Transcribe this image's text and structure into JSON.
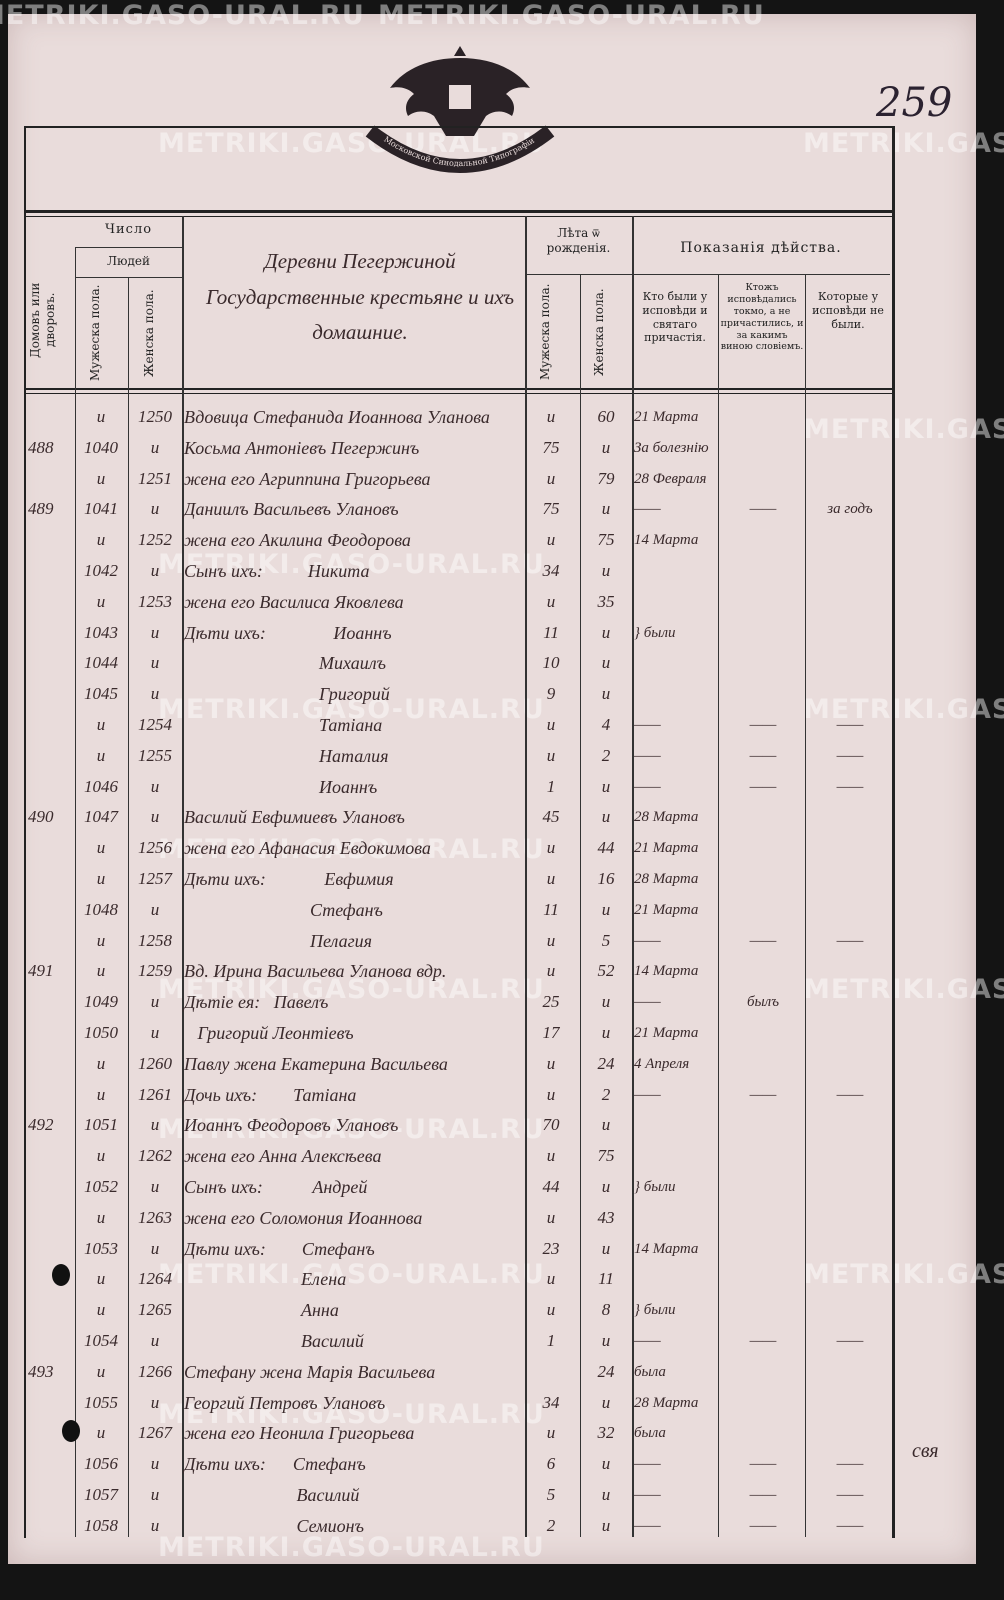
{
  "page_number": "259",
  "watermark": "METRIKI.GASO-URAL.RU",
  "emblem_text": "Московской Синодальной Типографiи",
  "header": {
    "count_group": "Число",
    "houses": "Домовъ или дворовъ.",
    "people": "Людей",
    "male": "Мужеска пола.",
    "female": "Женска пола.",
    "title_handwritten": "Деревни Пегержиной Государственные крестьяне и ихъ домашние.",
    "age_group": "Лѣта ѿ рожденiя.",
    "age_male": "Мужеска пола.",
    "age_female": "Женска пола.",
    "actions_group": "Показанiя дѣйства.",
    "col_confessed": "Кто были у исповѣди и святаго причастiя.",
    "col_confessed_only": "Ктожъ исповѣдались токмо, а не причастились, и за какимъ виною словiемъ.",
    "col_absent": "Которые у исповѣди не были."
  },
  "rows": [
    {
      "h": "",
      "m": "и",
      "f": "1250",
      "name": "Вдовица Стефанида Иоаннова Уланова",
      "am": "и",
      "af": "60",
      "c1": "21 Марта",
      "c2": "",
      "c3": ""
    },
    {
      "h": "488",
      "m": "1040",
      "f": "и",
      "name": "Косьма Антонiевъ Пегержинъ",
      "am": "75",
      "af": "и",
      "c1": "За болезнiю",
      "c2": "",
      "c3": ""
    },
    {
      "h": "",
      "m": "и",
      "f": "1251",
      "name": "жена его Агриппина Григорьева",
      "am": "и",
      "af": "79",
      "c1": "28 Февраля",
      "c2": "",
      "c3": ""
    },
    {
      "h": "489",
      "m": "1041",
      "f": "и",
      "name": "Даниилъ Васильевъ Улановъ",
      "am": "75",
      "af": "и",
      "c1": "——",
      "c2": "——",
      "c3": "за годъ"
    },
    {
      "h": "",
      "m": "и",
      "f": "1252",
      "name": "жена его Акилина Феодорова",
      "am": "и",
      "af": "75",
      "c1": "14 Марта",
      "c2": "",
      "c3": ""
    },
    {
      "h": "",
      "m": "1042",
      "f": "и",
      "name": "Сынъ ихъ:          Никита",
      "am": "34",
      "af": "и",
      "c1": "",
      "c2": "",
      "c3": ""
    },
    {
      "h": "",
      "m": "и",
      "f": "1253",
      "name": "жена его Василиса Яковлева",
      "am": "и",
      "af": "35",
      "c1": "",
      "c2": "",
      "c3": ""
    },
    {
      "h": "",
      "m": "1043",
      "f": "и",
      "name": "Дѣти ихъ:               Иоаннъ",
      "am": "11",
      "af": "и",
      "c1": "} были",
      "c2": "",
      "c3": ""
    },
    {
      "h": "",
      "m": "1044",
      "f": "и",
      "name": "                              Михаилъ",
      "am": "10",
      "af": "и",
      "c1": "",
      "c2": "",
      "c3": ""
    },
    {
      "h": "",
      "m": "1045",
      "f": "и",
      "name": "                              Григорий",
      "am": "9",
      "af": "и",
      "c1": "",
      "c2": "",
      "c3": ""
    },
    {
      "h": "",
      "m": "и",
      "f": "1254",
      "name": "                              Татiана",
      "am": "и",
      "af": "4",
      "c1": "——",
      "c2": "——",
      "c3": "——"
    },
    {
      "h": "",
      "m": "и",
      "f": "1255",
      "name": "                              Наталия",
      "am": "и",
      "af": "2",
      "c1": "——",
      "c2": "——",
      "c3": "——"
    },
    {
      "h": "",
      "m": "1046",
      "f": "и",
      "name": "                              Иоаннъ",
      "am": "1",
      "af": "и",
      "c1": "——",
      "c2": "——",
      "c3": "——"
    },
    {
      "h": "490",
      "m": "1047",
      "f": "и",
      "name": "Василий Евфимиевъ Улановъ",
      "am": "45",
      "af": "и",
      "c1": "28 Марта",
      "c2": "",
      "c3": ""
    },
    {
      "h": "",
      "m": "и",
      "f": "1256",
      "name": "жена его Афанасия Евдокимова",
      "am": "и",
      "af": "44",
      "c1": "21 Марта",
      "c2": "",
      "c3": ""
    },
    {
      "h": "",
      "m": "и",
      "f": "1257",
      "name": "Дѣти ихъ:             Евфимия",
      "am": "и",
      "af": "16",
      "c1": "28 Марта",
      "c2": "",
      "c3": ""
    },
    {
      "h": "",
      "m": "1048",
      "f": "и",
      "name": "                            Стефанъ",
      "am": "11",
      "af": "и",
      "c1": "21 Марта",
      "c2": "",
      "c3": ""
    },
    {
      "h": "",
      "m": "и",
      "f": "1258",
      "name": "                            Пелагия",
      "am": "и",
      "af": "5",
      "c1": "——",
      "c2": "——",
      "c3": "——"
    },
    {
      "h": "491",
      "m": "и",
      "f": "1259",
      "name": "Вд. Ирина Васильева Уланова вдр.",
      "am": "и",
      "af": "52",
      "c1": "14 Марта",
      "c2": "",
      "c3": ""
    },
    {
      "h": "",
      "m": "1049",
      "f": "и",
      "name": "Дѣтiе ея:   Павелъ",
      "am": "25",
      "af": "и",
      "c1": "——",
      "c2": "былъ",
      "c3": ""
    },
    {
      "h": "",
      "m": "1050",
      "f": "и",
      "name": "   Григорий Леонтiевъ",
      "am": "17",
      "af": "и",
      "c1": "21 Марта",
      "c2": "",
      "c3": ""
    },
    {
      "h": "",
      "m": "и",
      "f": "1260",
      "name": "Павлу жена Екатерина Васильева",
      "am": "и",
      "af": "24",
      "c1": "4 Апреля",
      "c2": "",
      "c3": ""
    },
    {
      "h": "",
      "m": "и",
      "f": "1261",
      "name": "Дочь ихъ:        Татiана",
      "am": "и",
      "af": "2",
      "c1": "——",
      "c2": "——",
      "c3": "——"
    },
    {
      "h": "492",
      "m": "1051",
      "f": "и",
      "name": "Иоаннъ Феодоровъ Улановъ",
      "am": "70",
      "af": "и",
      "c1": "",
      "c2": "",
      "c3": ""
    },
    {
      "h": "",
      "m": "и",
      "f": "1262",
      "name": "жена его Анна Алексѣева",
      "am": "и",
      "af": "75",
      "c1": "",
      "c2": "",
      "c3": ""
    },
    {
      "h": "",
      "m": "1052",
      "f": "и",
      "name": "Сынъ ихъ:           Андрей",
      "am": "44",
      "af": "и",
      "c1": "} были",
      "c2": "",
      "c3": ""
    },
    {
      "h": "",
      "m": "и",
      "f": "1263",
      "name": "жена его Соломония Иоаннова",
      "am": "и",
      "af": "43",
      "c1": "",
      "c2": "",
      "c3": ""
    },
    {
      "h": "",
      "m": "1053",
      "f": "и",
      "name": "Дѣти ихъ:        Стефанъ",
      "am": "23",
      "af": "и",
      "c1": "14 Марта",
      "c2": "",
      "c3": ""
    },
    {
      "h": "",
      "m": "и",
      "f": "1264",
      "name": "                          Елена",
      "am": "и",
      "af": "11",
      "c1": "",
      "c2": "",
      "c3": ""
    },
    {
      "h": "",
      "m": "и",
      "f": "1265",
      "name": "                          Анна",
      "am": "и",
      "af": "8",
      "c1": "} были",
      "c2": "",
      "c3": ""
    },
    {
      "h": "",
      "m": "1054",
      "f": "и",
      "name": "                          Василий",
      "am": "1",
      "af": "и",
      "c1": "——",
      "c2": "——",
      "c3": "——"
    },
    {
      "h": "493",
      "m": "и",
      "f": "1266",
      "name": "Стефану жена Марiя Васильева",
      "am": "",
      "af": "24",
      "c1": "была",
      "c2": "",
      "c3": ""
    },
    {
      "h": "",
      "m": "1055",
      "f": "и",
      "name": "Георгий Петровъ Улановъ",
      "am": "34",
      "af": "и",
      "c1": "28 Марта",
      "c2": "",
      "c3": ""
    },
    {
      "h": "",
      "m": "и",
      "f": "1267",
      "name": "жена его Неонила Григорьева",
      "am": "и",
      "af": "32",
      "c1": "была",
      "c2": "",
      "c3": ""
    },
    {
      "h": "",
      "m": "1056",
      "f": "и",
      "name": "Дѣти ихъ:      Стефанъ",
      "am": "6",
      "af": "и",
      "c1": "——",
      "c2": "——",
      "c3": "——"
    },
    {
      "h": "",
      "m": "1057",
      "f": "и",
      "name": "                         Василий",
      "am": "5",
      "af": "и",
      "c1": "——",
      "c2": "——",
      "c3": "——"
    },
    {
      "h": "",
      "m": "1058",
      "f": "и",
      "name": "                         Семионъ",
      "am": "2",
      "af": "и",
      "c1": "——",
      "c2": "——",
      "c3": "——"
    }
  ],
  "margin_note": "свя",
  "colors": {
    "paper": "#e9dcdb",
    "ink": "#3a2a2c",
    "print": "#222222",
    "background": "#141414"
  }
}
